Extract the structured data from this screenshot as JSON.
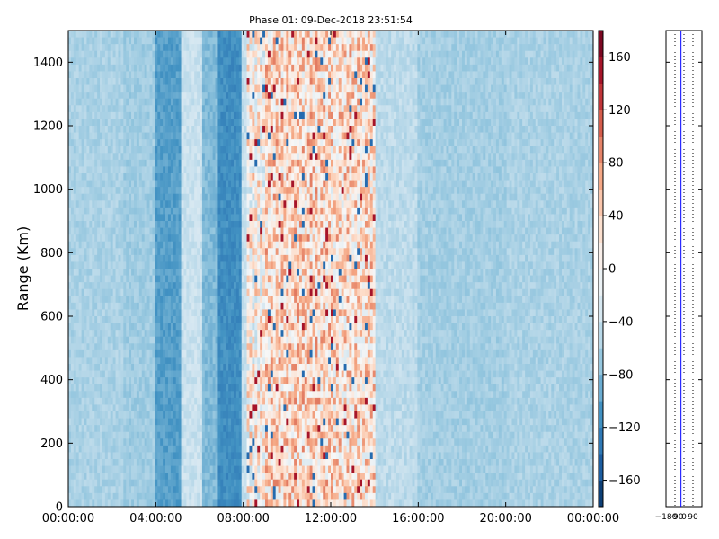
{
  "chart_data": {
    "type": "heatmap",
    "title": "Phase 01: 09-Dec-2018 23:51:54",
    "ylabel": "Range (Km)",
    "xlabel": "",
    "x_ticks": [
      "00:00:00",
      "04:00:00",
      "08:00:00",
      "12:00:00",
      "16:00:00",
      "20:00:00",
      "00:00:00"
    ],
    "x_range_hours": [
      0,
      24
    ],
    "y_ticks": [
      0,
      200,
      400,
      600,
      800,
      1000,
      1200,
      1400
    ],
    "ylim": [
      0,
      1500
    ],
    "colorbar": {
      "colormap": "RdBu_r",
      "range": [
        -180,
        180
      ],
      "ticks": [
        160,
        120,
        80,
        40,
        0,
        -40,
        -80,
        -120,
        -160
      ]
    },
    "phase_bands": [
      {
        "from_h": 0.0,
        "to_h": 2.5,
        "phase": -58
      },
      {
        "from_h": 2.5,
        "to_h": 4.0,
        "phase": -64
      },
      {
        "from_h": 4.0,
        "to_h": 5.2,
        "phase": -100
      },
      {
        "from_h": 5.2,
        "to_h": 6.1,
        "phase": -40
      },
      {
        "from_h": 6.1,
        "to_h": 6.8,
        "phase": -80
      },
      {
        "from_h": 6.8,
        "to_h": 7.9,
        "phase": -112
      },
      {
        "from_h": 7.9,
        "to_h": 8.2,
        "phase": -44
      },
      {
        "from_h": 8.2,
        "to_h": 9.0,
        "phase": 10
      },
      {
        "from_h": 9.0,
        "to_h": 12.0,
        "phase": 35
      },
      {
        "from_h": 12.0,
        "to_h": 14.0,
        "phase": 30
      },
      {
        "from_h": 14.0,
        "to_h": 16.0,
        "phase": -48
      },
      {
        "from_h": 16.0,
        "to_h": 20.0,
        "phase": -62
      },
      {
        "from_h": 20.0,
        "to_h": 24.0,
        "phase": -58
      }
    ],
    "side_panel": {
      "xticks": [
        "-180",
        "-90",
        "0",
        "90"
      ],
      "xlim": [
        -180,
        180
      ],
      "line_phase": -30,
      "line_color": "#0000ff"
    }
  }
}
